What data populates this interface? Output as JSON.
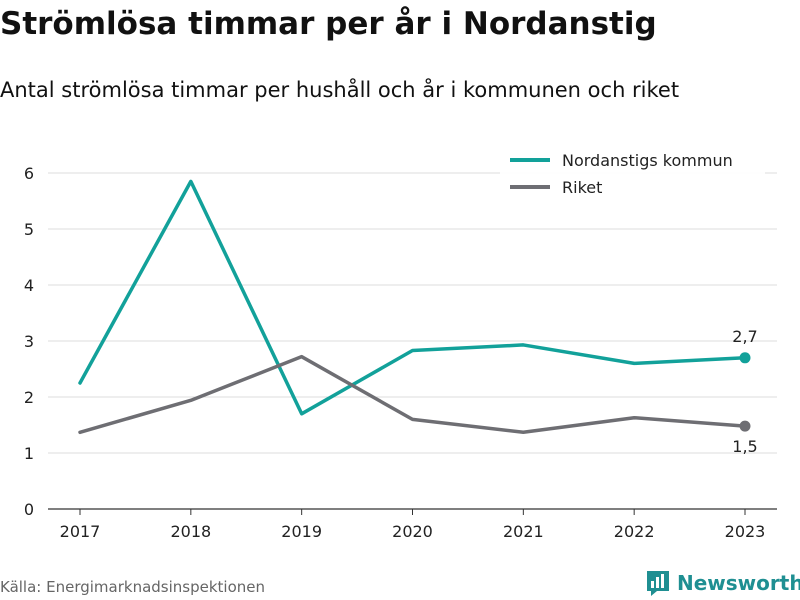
{
  "title": "Strömlösa timmar per år i Nordanstig",
  "subtitle": "Antal strömlösa timmar per hushåll och år i kommunen och riket",
  "source": "Källa: Energimarknadsinspektionen",
  "brand": {
    "name": "Newsworthy",
    "icon": "newsworthy-logo-icon",
    "color": "#1f8f92"
  },
  "chart_data": {
    "type": "line",
    "x": [
      "2017",
      "2018",
      "2019",
      "2020",
      "2021",
      "2022",
      "2023"
    ],
    "ylim": [
      0,
      6
    ],
    "yticks": [
      "0",
      "1",
      "2",
      "3",
      "4",
      "5",
      "6"
    ],
    "grid": true,
    "legend_position": "top-right",
    "series": [
      {
        "name": "Nordanstigs kommun",
        "color": "#12a19a",
        "values": [
          2.25,
          5.85,
          1.7,
          2.83,
          2.93,
          2.6,
          2.7
        ],
        "end_label": "2,7"
      },
      {
        "name": "Riket",
        "color": "#6e6e73",
        "values": [
          1.37,
          1.94,
          2.72,
          1.6,
          1.37,
          1.63,
          1.48
        ],
        "end_label": "1,5"
      }
    ]
  }
}
